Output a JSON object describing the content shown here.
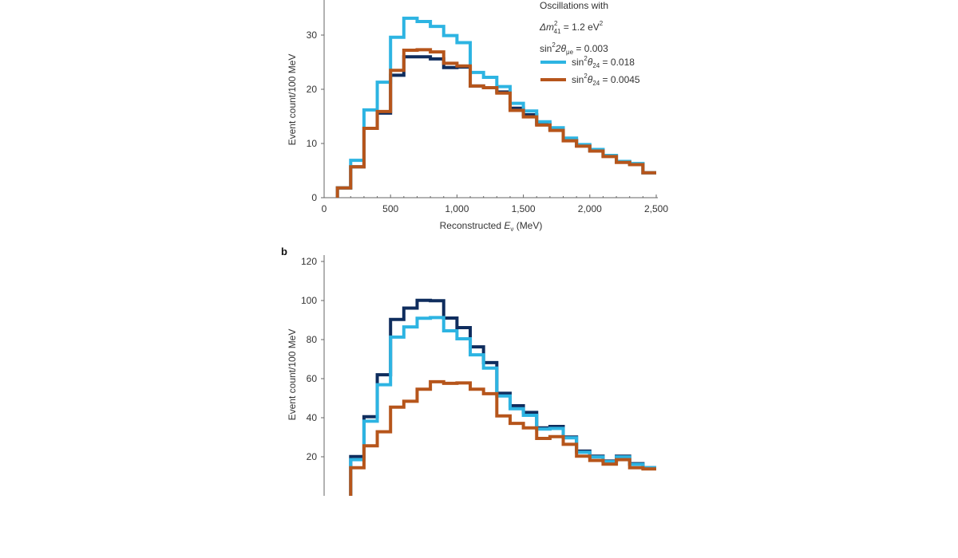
{
  "colors": {
    "null": "#0f2d5e",
    "blue": "#2db4e2",
    "orange": "#b6551b",
    "axis": "#666666"
  },
  "chart_data": [
    {
      "panel_label": "",
      "type": "line",
      "step": true,
      "xlabel": "Reconstructed E_ν (MeV)",
      "xlabel_parts": {
        "pre": "Reconstructed ",
        "var": "E",
        "sub": "ν",
        "post": " (MeV)"
      },
      "ylabel": "Event count/100 MeV",
      "xlim": [
        0,
        2500
      ],
      "ylim": [
        0,
        36
      ],
      "xticks": [
        0,
        500,
        1000,
        1500,
        2000,
        2500
      ],
      "xtick_labels": [
        "0",
        "500",
        "1,000",
        "1,500",
        "2,000",
        "2,500"
      ],
      "yticks": [
        0,
        10,
        20,
        30
      ],
      "ytick_labels": [
        "0",
        "10",
        "20",
        "30"
      ],
      "bin_edges": [
        100,
        200,
        300,
        400,
        500,
        600,
        700,
        800,
        900,
        1000,
        1100,
        1200,
        1300,
        1400,
        1500,
        1600,
        1700,
        1800,
        1900,
        2000,
        2100,
        2200,
        2300,
        2400,
        2500
      ],
      "legend": {
        "title": "Oscillations with",
        "line1": {
          "pre": "Δm",
          "sup": "2",
          "sub": "41",
          "post": " = 1.2 eV",
          "post_sup": "2"
        },
        "line2": {
          "pre": "sin",
          "sup": "2",
          "mid": "2θ",
          "sub": "μe",
          "post": " = 0.003"
        },
        "placement": "top-right"
      },
      "series": [
        {
          "key": "null",
          "color": "#0f2d5e",
          "values": [
            1.8,
            5.7,
            12.8,
            15.6,
            22.6,
            26.0,
            26.0,
            25.6,
            24.0,
            24.1,
            20.6,
            20.3,
            19.5,
            16.5,
            15.3,
            13.6,
            12.6,
            10.6,
            9.6,
            8.7,
            7.7,
            6.6,
            6.2,
            4.6
          ]
        },
        {
          "key": "blue",
          "color": "#2db4e2",
          "legend": {
            "pre": "sin",
            "sup": "2",
            "mid": "θ",
            "sub": "24",
            "post": " = 0.018"
          },
          "values": [
            1.8,
            6.9,
            16.2,
            21.3,
            29.6,
            33.1,
            32.5,
            31.6,
            29.9,
            28.6,
            23.1,
            22.2,
            20.5,
            17.4,
            16.0,
            14.0,
            12.9,
            11.0,
            9.8,
            8.9,
            7.8,
            6.7,
            6.3,
            4.6
          ]
        },
        {
          "key": "orange",
          "color": "#b6551b",
          "legend": {
            "pre": "sin",
            "sup": "2",
            "mid": "θ",
            "sub": "24",
            "post": " = 0.0045"
          },
          "values": [
            1.8,
            5.7,
            12.8,
            15.9,
            23.5,
            27.2,
            27.3,
            26.9,
            24.8,
            24.3,
            20.6,
            20.3,
            19.3,
            16.1,
            14.9,
            13.4,
            12.4,
            10.5,
            9.5,
            8.6,
            7.6,
            6.5,
            6.1,
            4.6
          ]
        }
      ]
    },
    {
      "panel_label": "b",
      "type": "line",
      "step": true,
      "ylabel": "Event count/100 MeV",
      "xlim": [
        0,
        2500
      ],
      "ylim": [
        0,
        120
      ],
      "yticks": [
        20,
        40,
        60,
        80,
        100,
        120
      ],
      "ytick_labels": [
        "20",
        "40",
        "60",
        "80",
        "100",
        "120"
      ],
      "bin_edges": [
        200,
        300,
        400,
        500,
        600,
        700,
        800,
        900,
        1000,
        1100,
        1200,
        1300,
        1400,
        1500,
        1600,
        1700,
        1800,
        1900,
        2000,
        2100,
        2200,
        2300,
        2400,
        2500
      ],
      "series": [
        {
          "key": "null",
          "color": "#0f2d5e",
          "values": [
            20.1,
            40.5,
            62.0,
            90.3,
            96.1,
            100.1,
            99.9,
            91.0,
            86.1,
            76.3,
            68.2,
            52.5,
            46.1,
            42.7,
            34.8,
            35.5,
            30.1,
            22.9,
            20.3,
            17.8,
            20.3,
            16.5,
            14.4
          ]
        },
        {
          "key": "blue",
          "color": "#2db4e2",
          "values": [
            18.5,
            38.2,
            56.9,
            81.3,
            86.5,
            90.9,
            91.3,
            84.5,
            80.4,
            72.2,
            65.4,
            51.1,
            44.6,
            41.2,
            34.2,
            34.5,
            29.7,
            22.3,
            19.9,
            17.5,
            19.9,
            16.1,
            14.4
          ]
        },
        {
          "key": "orange",
          "color": "#b6551b",
          "values": [
            14.4,
            25.6,
            32.8,
            45.4,
            48.4,
            54.6,
            58.4,
            57.6,
            57.8,
            54.6,
            52.3,
            40.9,
            37.1,
            34.8,
            29.4,
            30.3,
            26.4,
            20.3,
            18.1,
            16.2,
            18.5,
            14.4,
            13.8
          ]
        }
      ]
    }
  ]
}
